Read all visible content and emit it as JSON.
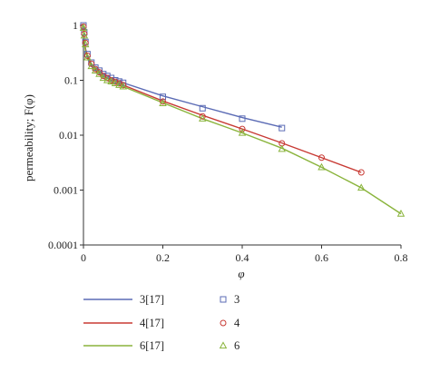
{
  "chart_data": {
    "type": "line",
    "xlabel": "φ",
    "ylabel": "permeability; F(φ)",
    "xlim": [
      0,
      0.8
    ],
    "ylim": [
      0.0001,
      1
    ],
    "yscale": "log",
    "x_ticks": [
      "0",
      "0.2",
      "0.4",
      "0.6",
      "0.8"
    ],
    "y_ticks": [
      "0.0001",
      "0.001",
      "0.01",
      "0.1",
      "1"
    ],
    "grid": false,
    "legend_position": "bottom",
    "series": [
      {
        "name": "3[17]",
        "kind": "line",
        "color": "#5b6bb5",
        "x": [
          0,
          0.002,
          0.005,
          0.01,
          0.02,
          0.03,
          0.04,
          0.05,
          0.06,
          0.07,
          0.08,
          0.09,
          0.1,
          0.2,
          0.3,
          0.4,
          0.5
        ],
        "y": [
          1.0,
          0.55,
          0.38,
          0.28,
          0.2,
          0.17,
          0.15,
          0.13,
          0.12,
          0.11,
          0.1,
          0.095,
          0.09,
          0.052,
          0.033,
          0.021,
          0.014
        ]
      },
      {
        "name": "4[17]",
        "kind": "line",
        "color": "#c83a34",
        "x": [
          0,
          0.002,
          0.005,
          0.01,
          0.02,
          0.03,
          0.04,
          0.05,
          0.06,
          0.07,
          0.08,
          0.09,
          0.1,
          0.2,
          0.3,
          0.4,
          0.5,
          0.6,
          0.7
        ],
        "y": [
          1.0,
          0.55,
          0.37,
          0.27,
          0.19,
          0.16,
          0.14,
          0.12,
          0.11,
          0.1,
          0.095,
          0.088,
          0.082,
          0.042,
          0.023,
          0.013,
          0.0072,
          0.0039,
          0.0021
        ]
      },
      {
        "name": "6[17]",
        "kind": "line",
        "color": "#8ab43c",
        "x": [
          0,
          0.002,
          0.005,
          0.01,
          0.02,
          0.03,
          0.04,
          0.05,
          0.06,
          0.07,
          0.08,
          0.09,
          0.1,
          0.2,
          0.3,
          0.4,
          0.5,
          0.6,
          0.7,
          0.8
        ],
        "y": [
          1.0,
          0.5,
          0.34,
          0.25,
          0.18,
          0.15,
          0.13,
          0.11,
          0.1,
          0.095,
          0.088,
          0.082,
          0.077,
          0.039,
          0.02,
          0.011,
          0.0058,
          0.0026,
          0.0011,
          0.00037
        ]
      },
      {
        "name": "3",
        "kind": "marker",
        "marker": "square",
        "color": "#5b6bb5",
        "x": [
          0,
          0.002,
          0.005,
          0.01,
          0.02,
          0.03,
          0.04,
          0.05,
          0.06,
          0.07,
          0.08,
          0.09,
          0.1,
          0.2,
          0.3,
          0.4,
          0.5
        ],
        "y": [
          1.0,
          0.75,
          0.5,
          0.3,
          0.21,
          0.17,
          0.15,
          0.13,
          0.12,
          0.11,
          0.1,
          0.095,
          0.09,
          0.05,
          0.031,
          0.02,
          0.0135
        ]
      },
      {
        "name": "4",
        "kind": "marker",
        "marker": "circle",
        "color": "#c83a34",
        "x": [
          0,
          0.002,
          0.005,
          0.01,
          0.02,
          0.03,
          0.04,
          0.05,
          0.06,
          0.07,
          0.08,
          0.09,
          0.1,
          0.2,
          0.3,
          0.4,
          0.5,
          0.6,
          0.7
        ],
        "y": [
          0.95,
          0.7,
          0.48,
          0.28,
          0.2,
          0.16,
          0.14,
          0.12,
          0.11,
          0.1,
          0.094,
          0.088,
          0.082,
          0.041,
          0.022,
          0.013,
          0.0071,
          0.0039,
          0.0021
        ]
      },
      {
        "name": "6",
        "kind": "marker",
        "marker": "triangle",
        "color": "#8ab43c",
        "x": [
          0,
          0.002,
          0.005,
          0.01,
          0.02,
          0.03,
          0.04,
          0.05,
          0.06,
          0.07,
          0.08,
          0.09,
          0.1,
          0.2,
          0.3,
          0.4,
          0.5,
          0.6,
          0.7,
          0.8
        ],
        "y": [
          0.9,
          0.65,
          0.45,
          0.26,
          0.18,
          0.15,
          0.13,
          0.11,
          0.1,
          0.095,
          0.088,
          0.082,
          0.077,
          0.038,
          0.02,
          0.011,
          0.0056,
          0.0026,
          0.0011,
          0.00037
        ]
      }
    ]
  }
}
